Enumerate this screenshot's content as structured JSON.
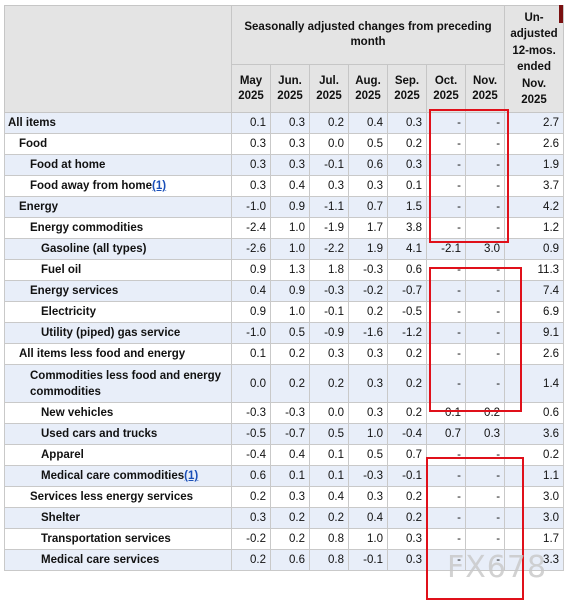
{
  "chart_data": {
    "type": "table",
    "header": {
      "group_label": "Seasonally adjusted changes from preceding month",
      "months": [
        "May\n2025",
        "Jun.\n2025",
        "Jul.\n2025",
        "Aug.\n2025",
        "Sep.\n2025",
        "Oct.\n2025",
        "Nov.\n2025"
      ],
      "last_col": "Un-\nadjusted\n12-mos.\nended\nNov.\n2025"
    },
    "rows": [
      {
        "label": "All items",
        "level": 0,
        "values": [
          "0.1",
          "0.3",
          "0.2",
          "0.4",
          "0.3",
          "-",
          "-",
          "2.7"
        ]
      },
      {
        "label": "Food",
        "level": 1,
        "values": [
          "0.3",
          "0.3",
          "0.0",
          "0.5",
          "0.2",
          "-",
          "-",
          "2.6"
        ]
      },
      {
        "label": "Food at home",
        "level": 2,
        "values": [
          "0.3",
          "0.3",
          "-0.1",
          "0.6",
          "0.3",
          "-",
          "-",
          "1.9"
        ]
      },
      {
        "label": "Food away from home",
        "note": "(1)",
        "level": 2,
        "values": [
          "0.3",
          "0.4",
          "0.3",
          "0.3",
          "0.1",
          "-",
          "-",
          "3.7"
        ]
      },
      {
        "label": "Energy",
        "level": 1,
        "values": [
          "-1.0",
          "0.9",
          "-1.1",
          "0.7",
          "1.5",
          "-",
          "-",
          "4.2"
        ]
      },
      {
        "label": "Energy commodities",
        "level": 2,
        "values": [
          "-2.4",
          "1.0",
          "-1.9",
          "1.7",
          "3.8",
          "-",
          "-",
          "1.2"
        ]
      },
      {
        "label": "Gasoline (all types)",
        "level": 3,
        "values": [
          "-2.6",
          "1.0",
          "-2.2",
          "1.9",
          "4.1",
          "-2.1",
          "3.0",
          "0.9"
        ]
      },
      {
        "label": "Fuel oil",
        "level": 3,
        "values": [
          "0.9",
          "1.3",
          "1.8",
          "-0.3",
          "0.6",
          "-",
          "-",
          "11.3"
        ]
      },
      {
        "label": "Energy services",
        "level": 2,
        "values": [
          "0.4",
          "0.9",
          "-0.3",
          "-0.2",
          "-0.7",
          "-",
          "-",
          "7.4"
        ]
      },
      {
        "label": "Electricity",
        "level": 3,
        "values": [
          "0.9",
          "1.0",
          "-0.1",
          "0.2",
          "-0.5",
          "-",
          "-",
          "6.9"
        ]
      },
      {
        "label": "Utility (piped) gas service",
        "level": 3,
        "values": [
          "-1.0",
          "0.5",
          "-0.9",
          "-1.6",
          "-1.2",
          "-",
          "-",
          "9.1"
        ]
      },
      {
        "label": "All items less food and energy",
        "level": 1,
        "values": [
          "0.1",
          "0.2",
          "0.3",
          "0.3",
          "0.2",
          "-",
          "-",
          "2.6"
        ]
      },
      {
        "label": "Commodities less food and energy commodities",
        "level": 2,
        "wrap": true,
        "values": [
          "0.0",
          "0.2",
          "0.2",
          "0.3",
          "0.2",
          "-",
          "-",
          "1.4"
        ]
      },
      {
        "label": "New vehicles",
        "level": 3,
        "values": [
          "-0.3",
          "-0.3",
          "0.0",
          "0.3",
          "0.2",
          "0.1",
          "0.2",
          "0.6"
        ]
      },
      {
        "label": "Used cars and trucks",
        "level": 3,
        "values": [
          "-0.5",
          "-0.7",
          "0.5",
          "1.0",
          "-0.4",
          "0.7",
          "0.3",
          "3.6"
        ]
      },
      {
        "label": "Apparel",
        "level": 3,
        "values": [
          "-0.4",
          "0.4",
          "0.1",
          "0.5",
          "0.7",
          "-",
          "-",
          "0.2"
        ]
      },
      {
        "label": "Medical care commodities",
        "note": "(1)",
        "level": 3,
        "values": [
          "0.6",
          "0.1",
          "0.1",
          "-0.3",
          "-0.1",
          "-",
          "-",
          "1.1"
        ]
      },
      {
        "label": "Services less energy services",
        "level": 2,
        "values": [
          "0.2",
          "0.3",
          "0.4",
          "0.3",
          "0.2",
          "-",
          "-",
          "3.0"
        ]
      },
      {
        "label": "Shelter",
        "level": 3,
        "values": [
          "0.3",
          "0.2",
          "0.2",
          "0.4",
          "0.2",
          "-",
          "-",
          "3.0"
        ]
      },
      {
        "label": "Transportation services",
        "level": 3,
        "values": [
          "-0.2",
          "0.2",
          "0.8",
          "1.0",
          "0.3",
          "-",
          "-",
          "1.7"
        ]
      },
      {
        "label": "Medical care services",
        "level": 3,
        "values": [
          "0.2",
          "0.6",
          "0.8",
          "-0.1",
          "0.3",
          "-",
          "-",
          "3.3"
        ]
      }
    ]
  },
  "highlight_color": "#e0101a",
  "band_color": "#e8eef9",
  "watermark": "FX678"
}
